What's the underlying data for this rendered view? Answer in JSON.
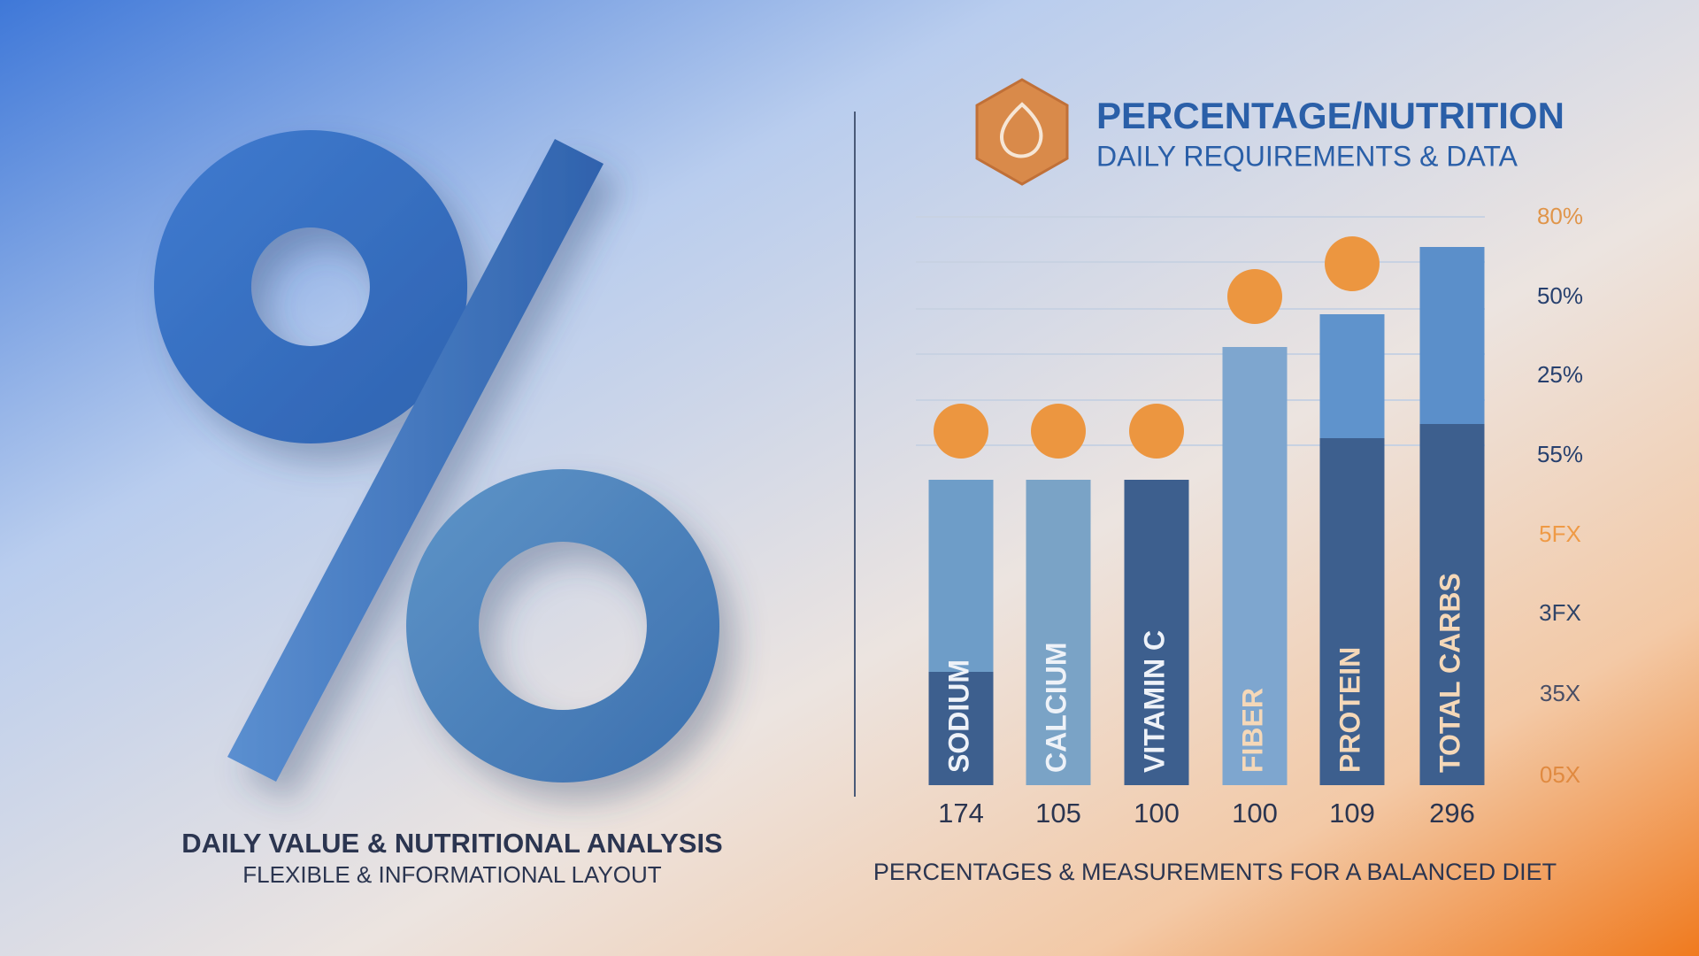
{
  "left": {
    "title": "DAILY VALUE & NUTRITIONAL ANALYSIS",
    "subtitle": "FLEXIBLE & INFORMATIONAL LAYOUT"
  },
  "chart": {
    "title": "PERCENTAGE/NUTRITION",
    "subtitle": "DAILY REQUIREMENTS & DATA",
    "axis_labels": [
      "80%",
      "50%",
      "25%",
      "55%",
      "5FX",
      "3FX",
      "35X",
      "05X"
    ],
    "bars": [
      {
        "label": "SODIUM",
        "number": 174
      },
      {
        "label": "CALCIUM",
        "number": 105
      },
      {
        "label": "VITAMIN C",
        "number": 100
      },
      {
        "label": "FIBER",
        "number": 100
      },
      {
        "label": "PROTEIN",
        "number": 109
      },
      {
        "label": "TOTAL CARBS",
        "number": 296
      }
    ],
    "caption": "PERCENTAGES & MEASUREMENTS FOR A BALANCED DIET"
  }
}
